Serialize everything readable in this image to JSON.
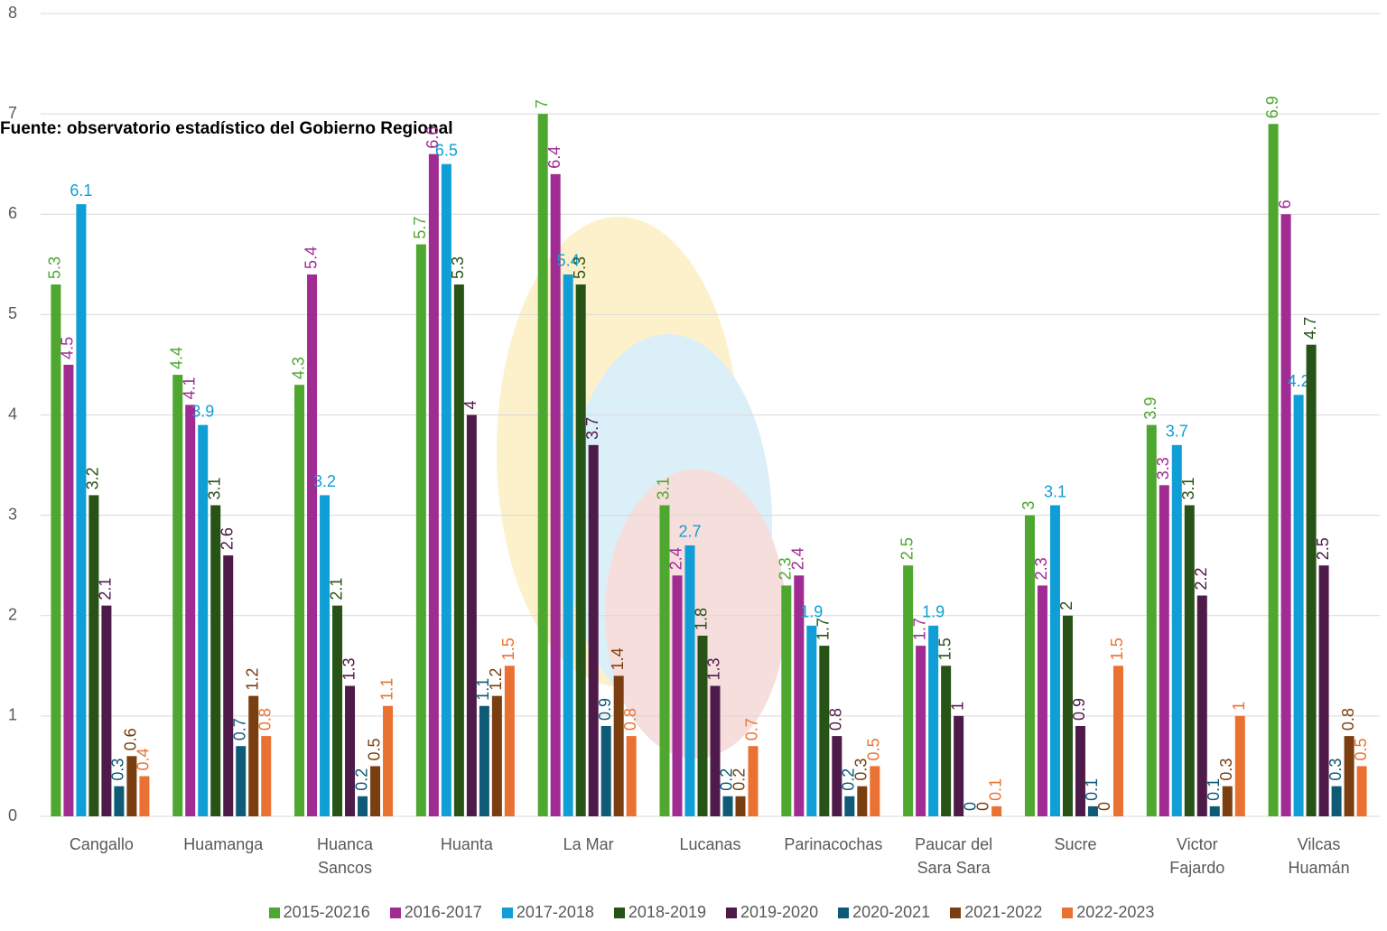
{
  "chart_data": {
    "type": "bar",
    "annotation": "Fuente: observatorio estadístico del Gobierno Regional",
    "categories": [
      "Cangallo",
      "Huamanga",
      "Huanca Sancos",
      "Huanta",
      "La Mar",
      "Lucanas",
      "Parinacochas",
      "Paucar del Sara Sara",
      "Sucre",
      "Victor Fajardo",
      "Vilcas Huamán"
    ],
    "series": [
      {
        "name": "2015-20216",
        "color": "#4ea72e",
        "values": [
          5.3,
          4.4,
          4.3,
          5.7,
          7,
          3.1,
          2.3,
          2.5,
          3,
          3.9,
          6.9
        ]
      },
      {
        "name": "2016-2017",
        "color": "#a02b93",
        "values": [
          4.5,
          4.1,
          5.4,
          6.6,
          6.4,
          2.4,
          2.4,
          1.7,
          2.3,
          3.3,
          6
        ]
      },
      {
        "name": "2017-2018",
        "color": "#0f9ed5",
        "values": [
          6.1,
          3.9,
          3.2,
          6.5,
          5.4,
          2.7,
          1.9,
          1.9,
          3.1,
          3.7,
          4.2
        ]
      },
      {
        "name": "2018-2019",
        "color": "#275317",
        "values": [
          3.2,
          3.1,
          2.1,
          5.3,
          5.3,
          1.8,
          1.7,
          1.5,
          2,
          3.1,
          4.7
        ]
      },
      {
        "name": "2019-2020",
        "color": "#4e1a4a",
        "values": [
          2.1,
          2.6,
          1.3,
          4,
          3.7,
          1.3,
          0.8,
          1,
          0.9,
          2.2,
          2.5
        ]
      },
      {
        "name": "2020-2021",
        "color": "#0e5a77",
        "values": [
          0.3,
          0.7,
          0.2,
          1.1,
          0.9,
          0.2,
          0.2,
          0,
          0.1,
          0.1,
          0.3
        ]
      },
      {
        "name": "2021-2022",
        "color": "#7a3e10",
        "values": [
          0.6,
          1.2,
          0.5,
          1.2,
          1.4,
          0.2,
          0.3,
          0,
          0,
          0.3,
          0.8
        ]
      },
      {
        "name": "2022-2023",
        "color": "#e97132",
        "values": [
          0.4,
          0.8,
          1.1,
          1.5,
          0.8,
          0.7,
          0.5,
          0.1,
          1.5,
          1,
          0.5
        ]
      }
    ],
    "ylim": [
      0,
      8
    ],
    "yticks": [
      0,
      1,
      2,
      3,
      4,
      5,
      6,
      7,
      8
    ],
    "grid": true,
    "legend": "bottom"
  }
}
